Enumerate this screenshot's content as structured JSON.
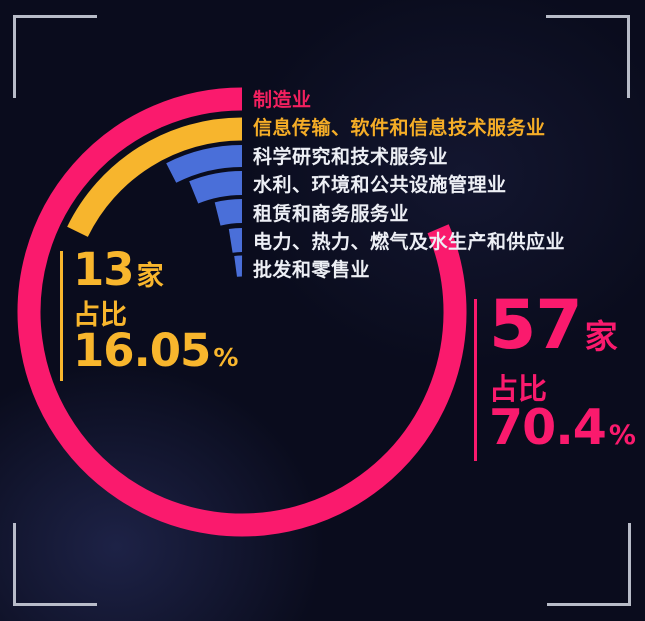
{
  "frame": {
    "bracket_color": "#c7cbd7",
    "background_color": "#0a0c1d"
  },
  "chart_data": {
    "type": "radial-bar",
    "title": "",
    "legend_position": "top-right-column",
    "center": {
      "x": 242,
      "y": 312
    },
    "start_angle_deg": 0,
    "direction": "counterclockwise",
    "total_implied": "81",
    "series": [
      {
        "name": "manufacturing",
        "label": "制造业",
        "label_color": "#f3205f",
        "arc_color": "#fa1a6d",
        "r": 213,
        "thickness": 23,
        "span_deg": 293,
        "count": "57家",
        "share_pct": 70.4
      },
      {
        "name": "it-services",
        "label": "信息传输、软件和信息技术服务业",
        "label_color": "#f5ad27",
        "arc_color": "#f7b52d",
        "r": 183,
        "thickness": 23,
        "span_deg": 64,
        "count": "13家",
        "share_pct": 16.05
      },
      {
        "name": "research-services",
        "label": "科学研究和技术服务业",
        "label_color": "#edeff5",
        "arc_color": "#4a6fd9",
        "r": 156,
        "thickness": 22,
        "span_deg": 27
      },
      {
        "name": "water-environment",
        "label": "水利、环境和公共设施管理业",
        "label_color": "#edeff5",
        "arc_color": "#4a6fd9",
        "r": 129,
        "thickness": 24,
        "span_deg": 22
      },
      {
        "name": "leasing-business",
        "label": "租赁和商务服务业",
        "label_color": "#edeff5",
        "arc_color": "#4a6fd9",
        "r": 101,
        "thickness": 24,
        "span_deg": 14
      },
      {
        "name": "power-gas-water",
        "label": "电力、热力、燃气及水生产和供应业",
        "label_color": "#edeff5",
        "arc_color": "#4a6fd9",
        "r": 72,
        "thickness": 24,
        "span_deg": 9
      },
      {
        "name": "wholesale-retail",
        "label": "批发和零售业",
        "label_color": "#edeff5",
        "arc_color": "#4a6fd9",
        "r": 46,
        "thickness": 21,
        "span_deg": 8
      }
    ]
  },
  "stats": {
    "left": {
      "count": "13",
      "unit": "家",
      "share_label": "占比",
      "pct": "16.05",
      "pct_sign": "%",
      "color": "#f8b62d"
    },
    "right": {
      "count": "57",
      "unit": "家",
      "share_label": "占比",
      "pct": "70.4",
      "pct_sign": "%",
      "color": "#fa1a6d"
    }
  }
}
